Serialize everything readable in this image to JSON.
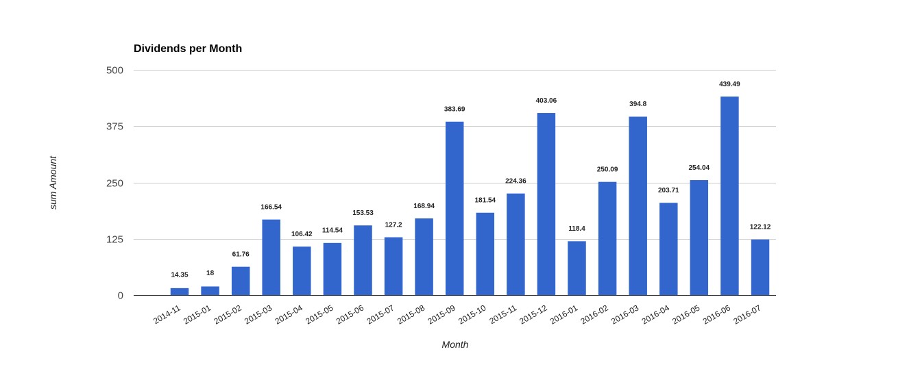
{
  "chart_data": {
    "type": "bar",
    "title": "Dividends per Month",
    "xlabel": "Month",
    "ylabel": "sum Amount",
    "ylim": [
      0,
      500
    ],
    "yticks": [
      0,
      125,
      250,
      375,
      500
    ],
    "grid": true,
    "legend": "none",
    "bar_color": "#3366cc",
    "categories": [
      "2014-11",
      "2015-01",
      "2015-02",
      "2015-03",
      "2015-04",
      "2015-05",
      "2015-06",
      "2015-07",
      "2015-08",
      "2015-09",
      "2015-10",
      "2015-11",
      "2015-12",
      "2016-01",
      "2016-02",
      "2016-03",
      "2016-04",
      "2016-05",
      "2016-06",
      "2016-07"
    ],
    "values": [
      14.35,
      18,
      61.76,
      166.54,
      106.42,
      114.54,
      153.53,
      127.2,
      168.94,
      383.69,
      181.54,
      224.36,
      403.06,
      118.4,
      250.09,
      394.8,
      203.71,
      254.04,
      439.49,
      122.12
    ],
    "data_labels": [
      "14.35",
      "18",
      "61.76",
      "166.54",
      "106.42",
      "114.54",
      "153.53",
      "127.2",
      "168.94",
      "383.69",
      "181.54",
      "224.36",
      "403.06",
      "118.4",
      "250.09",
      "394.8",
      "203.71",
      "254.04",
      "439.49",
      "122.12"
    ]
  }
}
